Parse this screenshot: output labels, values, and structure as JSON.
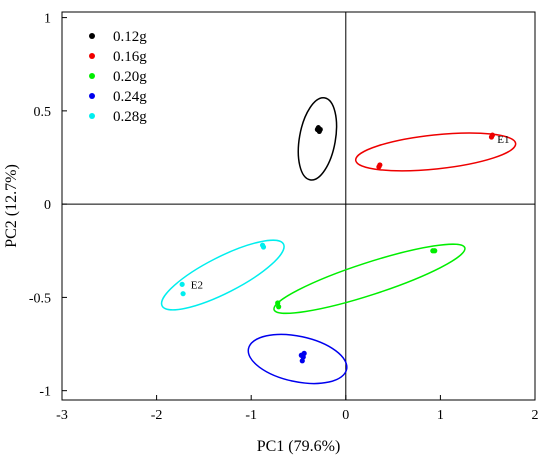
{
  "chart_data": {
    "type": "scatter",
    "title": "",
    "xlabel": "PC1 (79.6%)",
    "ylabel": "PC2 (12.7%)",
    "xlim": [
      -3,
      2
    ],
    "ylim": [
      -1.05,
      1.03
    ],
    "xticks": [
      "-3",
      "-2",
      "-1",
      "0",
      "1",
      "2"
    ],
    "yticks": [
      "1",
      "0.5",
      "0",
      "-0.5",
      "-1"
    ],
    "grid": false,
    "legend_position": "top-left",
    "series": [
      {
        "name": "0.12g",
        "color": "#000000",
        "points": [
          [
            -0.3,
            0.4
          ],
          [
            -0.28,
            0.39
          ],
          [
            -0.29,
            0.41
          ],
          [
            -0.27,
            0.4
          ]
        ],
        "ellipse": {
          "cx": -0.3,
          "cy": 0.35,
          "rx": 0.44,
          "ry": 0.19,
          "angle_deg": 80
        }
      },
      {
        "name": "0.16g",
        "color": "#ee0000",
        "points": [
          [
            1.55,
            0.37
          ],
          [
            1.54,
            0.36
          ],
          [
            0.36,
            0.21
          ],
          [
            0.35,
            0.2
          ]
        ],
        "ellipse": {
          "cx": 0.95,
          "cy": 0.28,
          "rx": 0.85,
          "ry": 0.18,
          "angle_deg": 6
        }
      },
      {
        "name": "0.20g",
        "color": "#00ee00",
        "points": [
          [
            0.92,
            -0.25
          ],
          [
            0.94,
            -0.25
          ],
          [
            -0.72,
            -0.53
          ],
          [
            -0.71,
            -0.55
          ]
        ],
        "ellipse": {
          "cx": 0.25,
          "cy": -0.4,
          "rx": 1.06,
          "ry": 0.17,
          "angle_deg": 18
        }
      },
      {
        "name": "0.24g",
        "color": "#0000ee",
        "points": [
          [
            -0.47,
            -0.81
          ],
          [
            -0.45,
            -0.82
          ],
          [
            -0.46,
            -0.84
          ],
          [
            -0.44,
            -0.8
          ]
        ],
        "ellipse": {
          "cx": -0.51,
          "cy": -0.83,
          "rx": 0.53,
          "ry": 0.24,
          "angle_deg": -12
        }
      },
      {
        "name": "0.28g",
        "color": "#00eeee",
        "points": [
          [
            -0.87,
            -0.23
          ],
          [
            -1.73,
            -0.43
          ],
          [
            -1.72,
            -0.48
          ],
          [
            -0.88,
            -0.22
          ]
        ],
        "ellipse": {
          "cx": -1.3,
          "cy": -0.38,
          "rx": 0.72,
          "ry": 0.19,
          "angle_deg": 27
        }
      }
    ],
    "annotations": [
      {
        "text": "E1",
        "x": 1.58,
        "y": 0.35,
        "series": "0.16g"
      },
      {
        "text": "E2",
        "x": -1.66,
        "y": -0.43,
        "series": "0.28g"
      }
    ]
  }
}
